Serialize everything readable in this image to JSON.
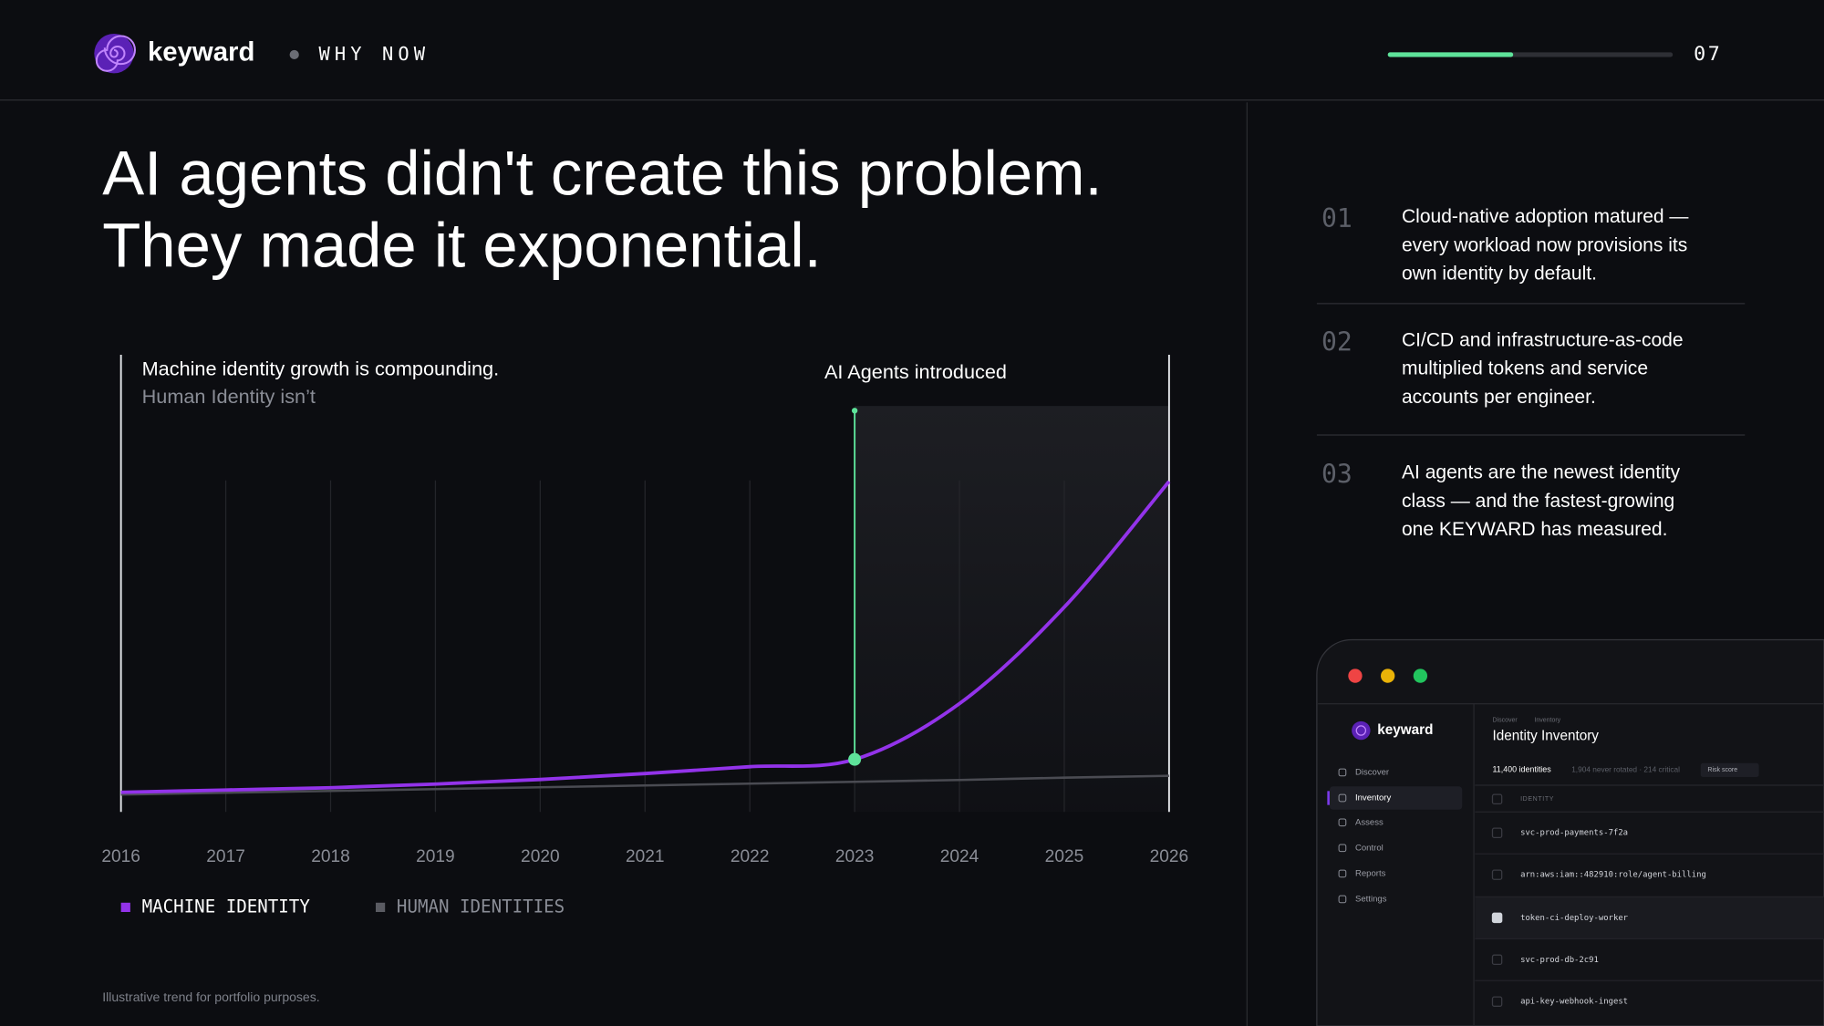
{
  "header": {
    "brand": "keyward",
    "section": "WHY NOW",
    "page": "07",
    "progress": 44
  },
  "headline": [
    "AI agents didn't create this problem.",
    "They made it exponential."
  ],
  "chart_data": {
    "type": "line",
    "subtitle": [
      "Machine identity growth is compounding.",
      "Human Identity isn’t"
    ],
    "x": [
      2016,
      2017,
      2018,
      2019,
      2020,
      2021,
      2022,
      2023,
      2024,
      2025,
      2026
    ],
    "xlim": [
      2016,
      2026
    ],
    "xticks": [
      2016,
      2017,
      2018,
      2019,
      2020,
      2021,
      2022,
      2023,
      2024,
      2025,
      2026
    ],
    "ylim": [
      0,
      100
    ],
    "grid": true,
    "series": [
      {
        "name": "MACHINE IDENTITY",
        "color": "#9333ea",
        "values": [
          4.3,
          4.8,
          5.3,
          6.1,
          7.1,
          8.4,
          9.9,
          11.5,
          23.7,
          44.8,
          72.3
        ]
      },
      {
        "name": "HUMAN IDENTITIES",
        "color": "#4a4b52",
        "values": [
          3.8,
          4.2,
          4.6,
          5.0,
          5.4,
          5.8,
          6.2,
          6.6,
          7.0,
          7.5,
          7.9
        ]
      }
    ],
    "annotation": {
      "text": "AI Agents introduced",
      "x": 2023,
      "color": "#5ee39a"
    }
  },
  "points": [
    {
      "number": "01",
      "lines": [
        "Cloud-native adoption matured —",
        "every workload now provisions its",
        "own identity by default."
      ]
    },
    {
      "number": "02",
      "lines": [
        "CI/CD and infrastructure-as-code",
        "multiplied tokens and service",
        "accounts per engineer."
      ]
    },
    {
      "number": "03",
      "lines": [
        "AI agents are the newest identity",
        "class — and the fastest-growing",
        "one KEYWARD has measured."
      ]
    }
  ],
  "app": {
    "brand": "keyward",
    "nav": [
      "Discover",
      "Inventory",
      "Assess",
      "Control",
      "Reports",
      "Settings"
    ],
    "breadcrumb": [
      "Discover",
      "Inventory"
    ],
    "title": "Identity Inventory",
    "count": "11,400 identities",
    "detail": "1,904 never rotated · 214 critical",
    "button": "Risk score",
    "column": "IDENTITY",
    "rows": [
      "svc-prod-payments-7f2a",
      "arn:aws:iam::482910:role/agent-billing",
      "token-ci-deploy-worker",
      "svc-prod-db-2c91",
      "api-key-webhook-ingest"
    ]
  },
  "footnote": "Illustrative trend for portfolio purposes."
}
